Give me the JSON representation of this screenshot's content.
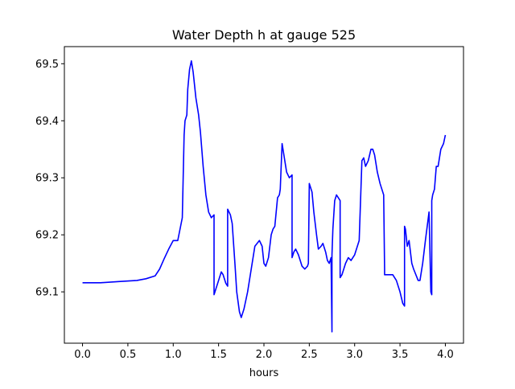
{
  "chart_data": {
    "type": "line",
    "title": "Water Depth h at gauge 525",
    "xlabel": "hours",
    "ylabel": "",
    "xlim": [
      -0.2,
      4.2
    ],
    "ylim": [
      69.01,
      69.53
    ],
    "xticks": [
      0.0,
      0.5,
      1.0,
      1.5,
      2.0,
      2.5,
      3.0,
      3.5,
      4.0
    ],
    "xtick_labels": [
      "0.0",
      "0.5",
      "1.0",
      "1.5",
      "2.0",
      "2.5",
      "3.0",
      "3.5",
      "4.0"
    ],
    "yticks": [
      69.1,
      69.2,
      69.3,
      69.4,
      69.5
    ],
    "ytick_labels": [
      "69.1",
      "69.2",
      "69.3",
      "69.4",
      "69.5"
    ],
    "grid": false,
    "legend": false,
    "series": [
      {
        "color": "#0000ff",
        "x": [
          0.0,
          0.2,
          0.4,
          0.6,
          0.7,
          0.8,
          0.85,
          0.9,
          0.95,
          1.0,
          1.05,
          1.1,
          1.12,
          1.13,
          1.15,
          1.16,
          1.18,
          1.2,
          1.22,
          1.25,
          1.28,
          1.3,
          1.33,
          1.36,
          1.39,
          1.42,
          1.45,
          1.45,
          1.46,
          1.5,
          1.53,
          1.55,
          1.58,
          1.6,
          1.6,
          1.63,
          1.65,
          1.68,
          1.7,
          1.73,
          1.75,
          1.78,
          1.82,
          1.85,
          1.9,
          1.95,
          1.98,
          2.0,
          2.02,
          2.05,
          2.08,
          2.1,
          2.12,
          2.15,
          2.17,
          2.18,
          2.2,
          2.22,
          2.25,
          2.28,
          2.31,
          2.31,
          2.33,
          2.35,
          2.38,
          2.42,
          2.45,
          2.48,
          2.49,
          2.5,
          2.51,
          2.53,
          2.55,
          2.58,
          2.6,
          2.63,
          2.65,
          2.68,
          2.7,
          2.72,
          2.74,
          2.75,
          2.75,
          2.76,
          2.78,
          2.8,
          2.82,
          2.84,
          2.84,
          2.86,
          2.88,
          2.9,
          2.93,
          2.96,
          3.0,
          3.05,
          3.08,
          3.08,
          3.1,
          3.12,
          3.15,
          3.18,
          3.2,
          3.22,
          3.25,
          3.28,
          3.32,
          3.33,
          3.33,
          3.35,
          3.38,
          3.42,
          3.46,
          3.5,
          3.53,
          3.55,
          3.55,
          3.56,
          3.58,
          3.6,
          3.63,
          3.65,
          3.7,
          3.72,
          3.75,
          3.78,
          3.82,
          3.84,
          3.85,
          3.85,
          3.86,
          3.88,
          3.9,
          3.92,
          3.95,
          3.98,
          4.0
        ],
        "y": [
          69.116,
          69.116,
          69.118,
          69.12,
          69.123,
          69.128,
          69.14,
          69.158,
          69.175,
          69.19,
          69.19,
          69.23,
          69.375,
          69.4,
          69.41,
          69.455,
          69.49,
          69.505,
          69.485,
          69.44,
          69.41,
          69.38,
          69.32,
          69.27,
          69.24,
          69.23,
          69.235,
          69.095,
          69.1,
          69.12,
          69.135,
          69.13,
          69.115,
          69.11,
          69.245,
          69.235,
          69.22,
          69.15,
          69.1,
          69.065,
          69.055,
          69.07,
          69.1,
          69.13,
          69.18,
          69.19,
          69.18,
          69.15,
          69.145,
          69.16,
          69.2,
          69.21,
          69.215,
          69.265,
          69.27,
          69.28,
          69.36,
          69.34,
          69.31,
          69.3,
          69.305,
          69.16,
          69.17,
          69.175,
          69.165,
          69.145,
          69.14,
          69.145,
          69.15,
          69.29,
          69.285,
          69.275,
          69.24,
          69.2,
          69.175,
          69.18,
          69.185,
          69.17,
          69.155,
          69.15,
          69.16,
          69.03,
          69.165,
          69.21,
          69.26,
          69.27,
          69.265,
          69.26,
          69.125,
          69.13,
          69.14,
          69.15,
          69.16,
          69.155,
          69.165,
          69.19,
          69.33,
          69.33,
          69.335,
          69.32,
          69.33,
          69.35,
          69.35,
          69.34,
          69.31,
          69.29,
          69.27,
          69.14,
          69.13,
          69.13,
          69.13,
          69.13,
          69.12,
          69.1,
          69.08,
          69.075,
          69.215,
          69.21,
          69.18,
          69.19,
          69.15,
          69.14,
          69.12,
          69.12,
          69.15,
          69.19,
          69.24,
          69.1,
          69.095,
          69.26,
          69.27,
          69.28,
          69.32,
          69.32,
          69.35,
          69.36,
          69.375
        ]
      }
    ]
  }
}
